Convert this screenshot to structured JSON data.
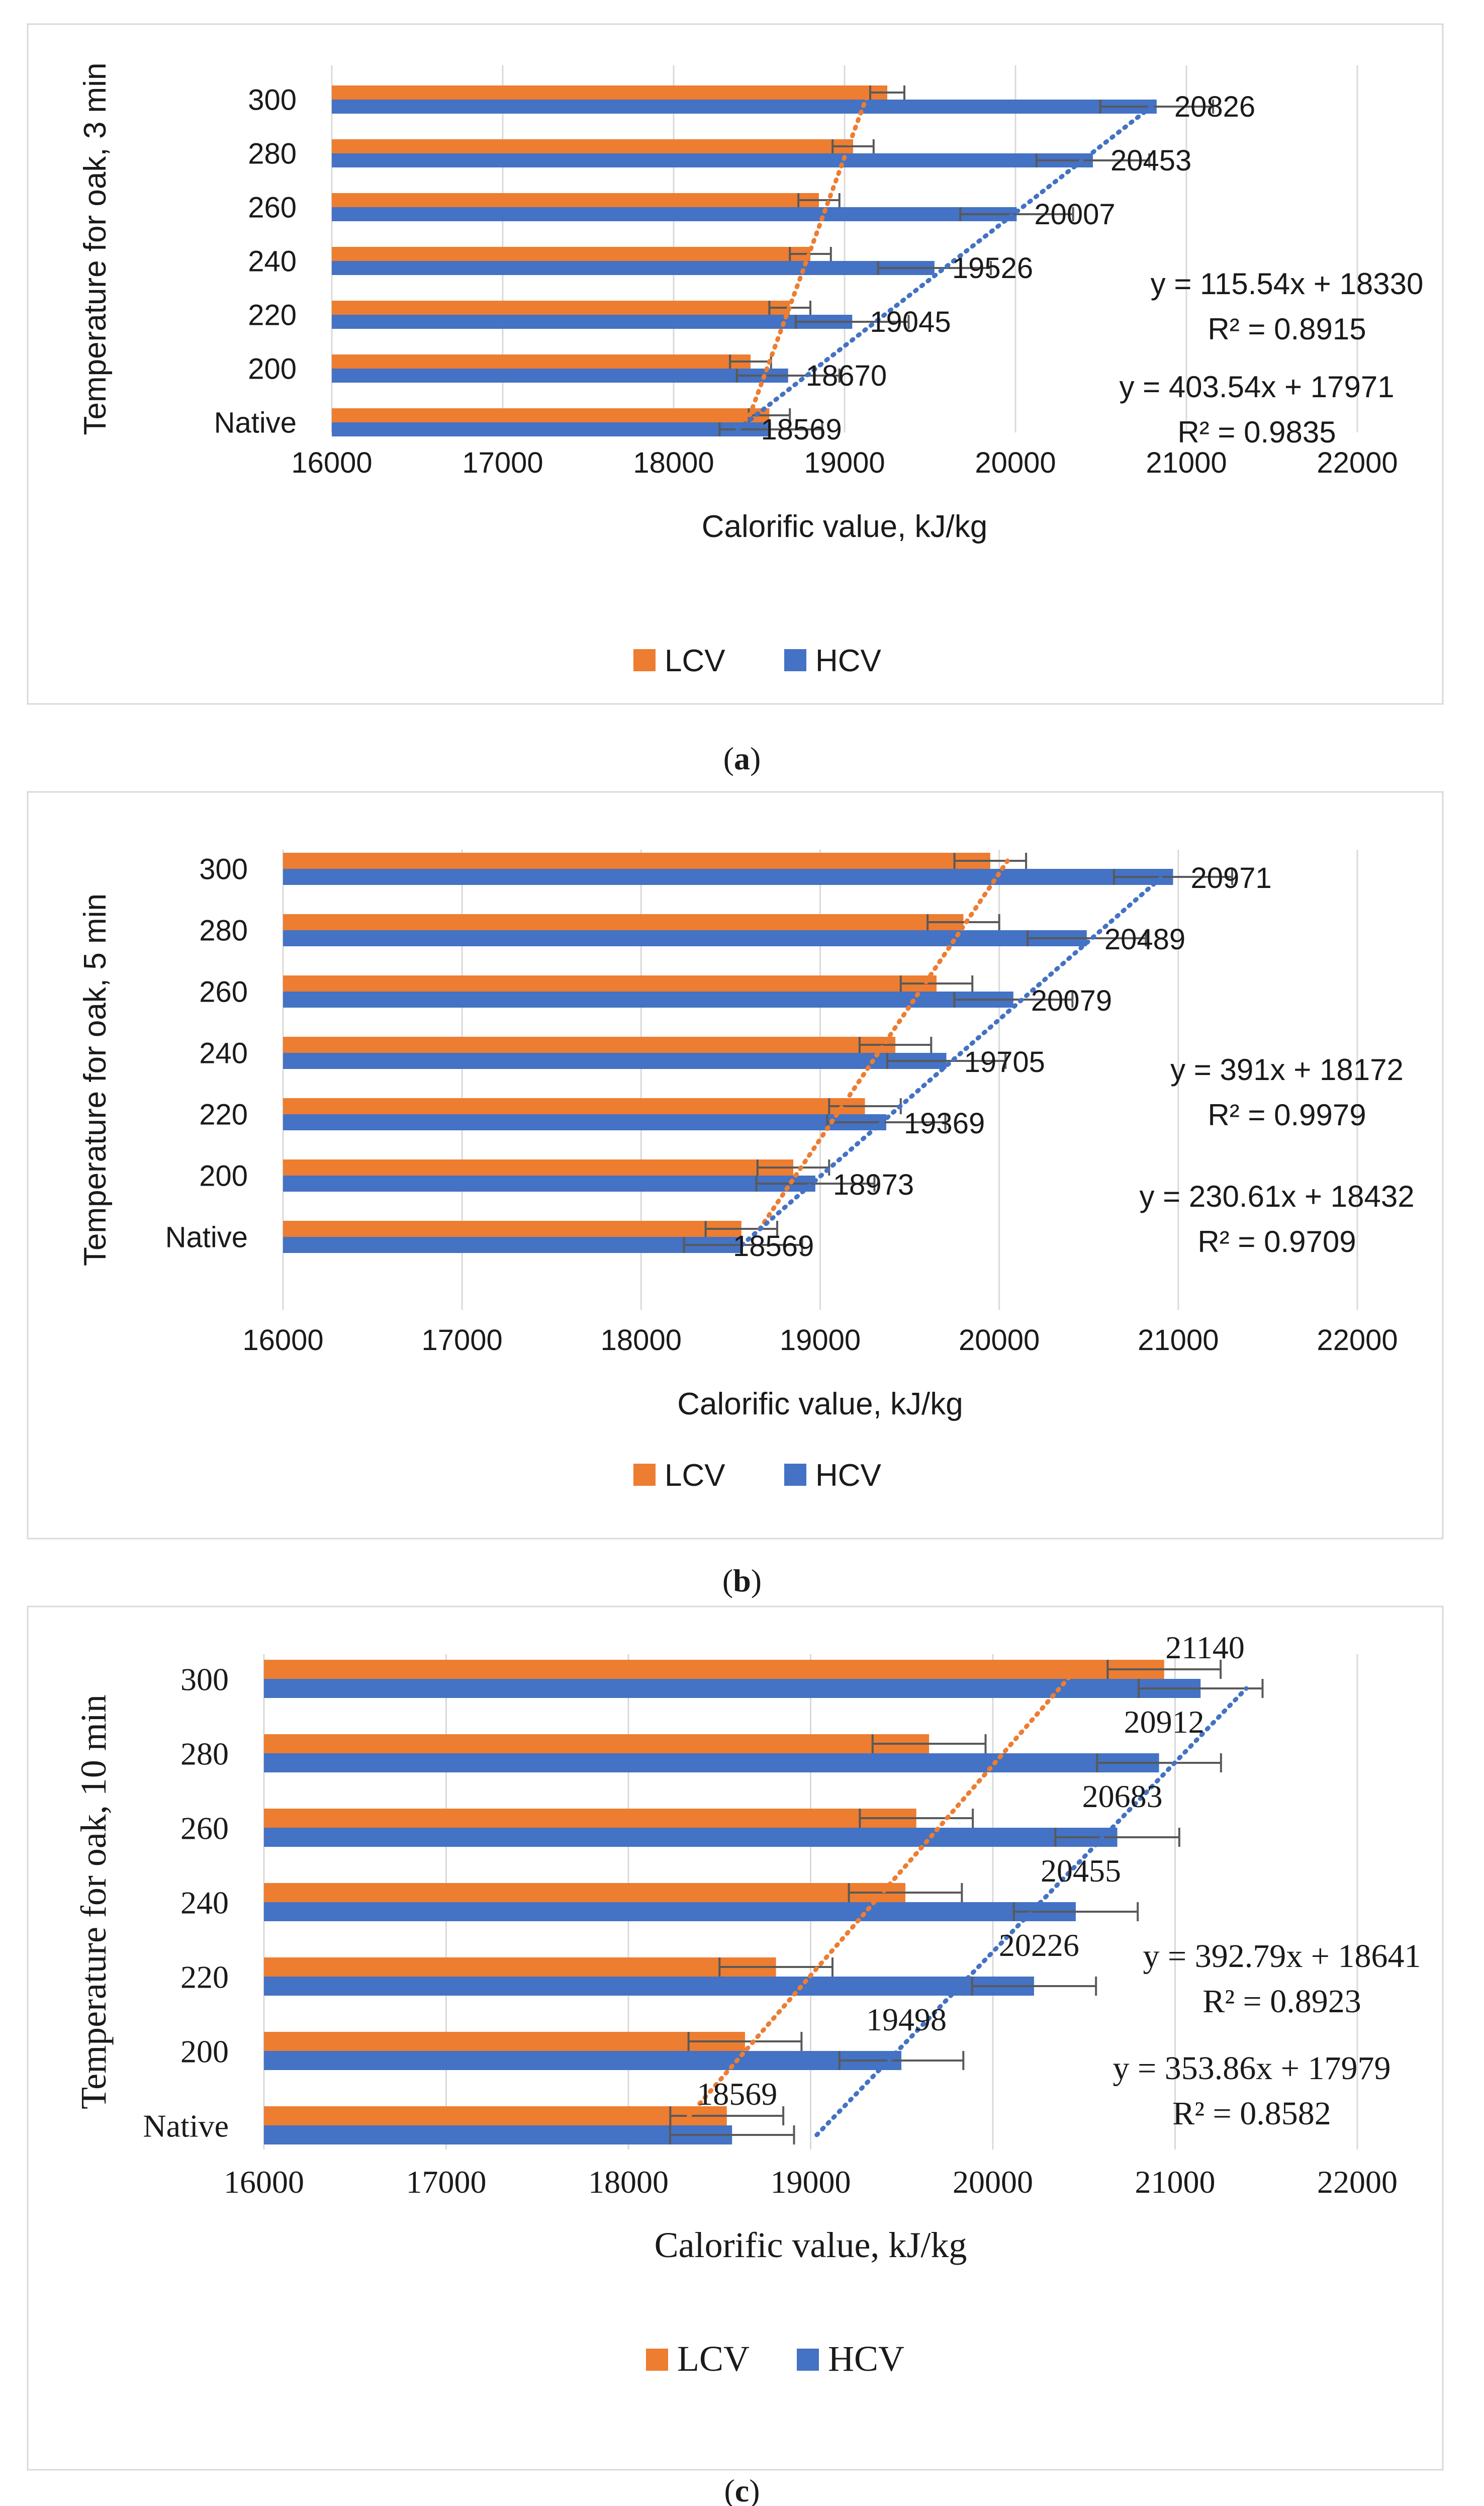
{
  "chart_data": [
    {
      "type": "bar",
      "orientation": "horizontal",
      "panel_label": "a",
      "categories": [
        "Native",
        "200",
        "220",
        "240",
        "260",
        "280",
        "300"
      ],
      "series": [
        {
          "name": "LCV",
          "color": "#ED7D31",
          "values": [
            18560,
            18450,
            18680,
            18800,
            18850,
            19050,
            19250
          ],
          "errors": [
            120,
            120,
            120,
            120,
            120,
            120,
            100
          ]
        },
        {
          "name": "HCV",
          "color": "#4472C4",
          "values": [
            18569,
            18670,
            19045,
            19526,
            20007,
            20453,
            20826
          ],
          "errors": [
            300,
            300,
            330,
            330,
            330,
            330,
            330
          ]
        }
      ],
      "data_labels": [
        "18569",
        "18670",
        "19045",
        "19526",
        "20007",
        "20453",
        "20826"
      ],
      "xlabel": "Calorific value, kJ/kg",
      "ylabel": "Temperature for oak, 3 min",
      "xlim": [
        16000,
        22000
      ],
      "xticks": [
        "16000",
        "17000",
        "18000",
        "19000",
        "20000",
        "21000",
        "22000"
      ],
      "trendlines": [
        {
          "series": "LCV",
          "slope": 115.54,
          "intercept": 18330
        },
        {
          "series": "HCV",
          "slope": 403.54,
          "intercept": 17971
        }
      ],
      "equations": [
        {
          "eq": "y = 115.54x + 18330",
          "r2_label": "R² = 0.8915"
        },
        {
          "eq": "y = 403.54x + 17971",
          "r2_label": "R² = 0.9835"
        }
      ],
      "legend": [
        "LCV",
        "HCV"
      ],
      "grid": true
    },
    {
      "type": "bar",
      "orientation": "horizontal",
      "panel_label": "b",
      "categories": [
        "Native",
        "200",
        "220",
        "240",
        "260",
        "280",
        "300"
      ],
      "series": [
        {
          "name": "LCV",
          "color": "#ED7D31",
          "values": [
            18560,
            18850,
            19250,
            19420,
            19650,
            19800,
            19950
          ],
          "errors": [
            200,
            200,
            200,
            200,
            200,
            200,
            200
          ]
        },
        {
          "name": "HCV",
          "color": "#4472C4",
          "values": [
            18569,
            18973,
            19369,
            19705,
            20079,
            20489,
            20971
          ],
          "errors": [
            330,
            330,
            330,
            330,
            330,
            330,
            330
          ]
        }
      ],
      "data_labels": [
        "18569",
        "18973",
        "19369",
        "19705",
        "20079",
        "20489",
        "20971"
      ],
      "xlabel": "Calorific value, kJ/kg",
      "ylabel": "Temperature for oak, 5 min",
      "xlim": [
        16000,
        22000
      ],
      "xticks": [
        "16000",
        "17000",
        "18000",
        "19000",
        "20000",
        "21000",
        "22000"
      ],
      "trendlines": [
        {
          "series": "LCV",
          "slope": 230.61,
          "intercept": 18432
        },
        {
          "series": "HCV",
          "slope": 391,
          "intercept": 18172
        }
      ],
      "equations": [
        {
          "eq": "y = 391x + 18172",
          "r2_label": "R² = 0.9979"
        },
        {
          "eq": "y = 230.61x + 18432",
          "r2_label": "R² = 0.9709"
        }
      ],
      "legend": [
        "LCV",
        "HCV"
      ],
      "grid": true
    },
    {
      "type": "bar",
      "orientation": "horizontal",
      "panel_label": "c",
      "categories": [
        "Native",
        "200",
        "220",
        "240",
        "260",
        "280",
        "300"
      ],
      "series": [
        {
          "name": "LCV",
          "color": "#ED7D31",
          "values": [
            18540,
            18640,
            18810,
            19520,
            19580,
            19650,
            20940
          ],
          "errors": [
            310,
            310,
            310,
            310,
            310,
            310,
            310
          ]
        },
        {
          "name": "HCV",
          "color": "#4472C4",
          "values": [
            18569,
            19498,
            20226,
            20455,
            20683,
            20912,
            21140
          ],
          "errors": [
            340,
            340,
            340,
            340,
            340,
            340,
            340
          ]
        }
      ],
      "data_labels": [
        "18569",
        "19498",
        "20226",
        "20455",
        "20683",
        "20912",
        "21140"
      ],
      "xlabel": "Calorific value, kJ/kg",
      "ylabel": "Temperature for oak, 10 min",
      "xlim": [
        16000,
        22000
      ],
      "xticks": [
        "16000",
        "17000",
        "18000",
        "19000",
        "20000",
        "21000",
        "22000"
      ],
      "trendlines": [
        {
          "series": "LCV",
          "slope": 353.86,
          "intercept": 17979
        },
        {
          "series": "HCV",
          "slope": 392.79,
          "intercept": 18641
        }
      ],
      "equations": [
        {
          "eq": "y = 392.79x + 18641",
          "r2_label": "R² = 0.8923"
        },
        {
          "eq": "y = 353.86x + 17979",
          "r2_label": "R² = 0.8582"
        }
      ],
      "legend": [
        "LCV",
        "HCV"
      ],
      "grid": true
    }
  ]
}
